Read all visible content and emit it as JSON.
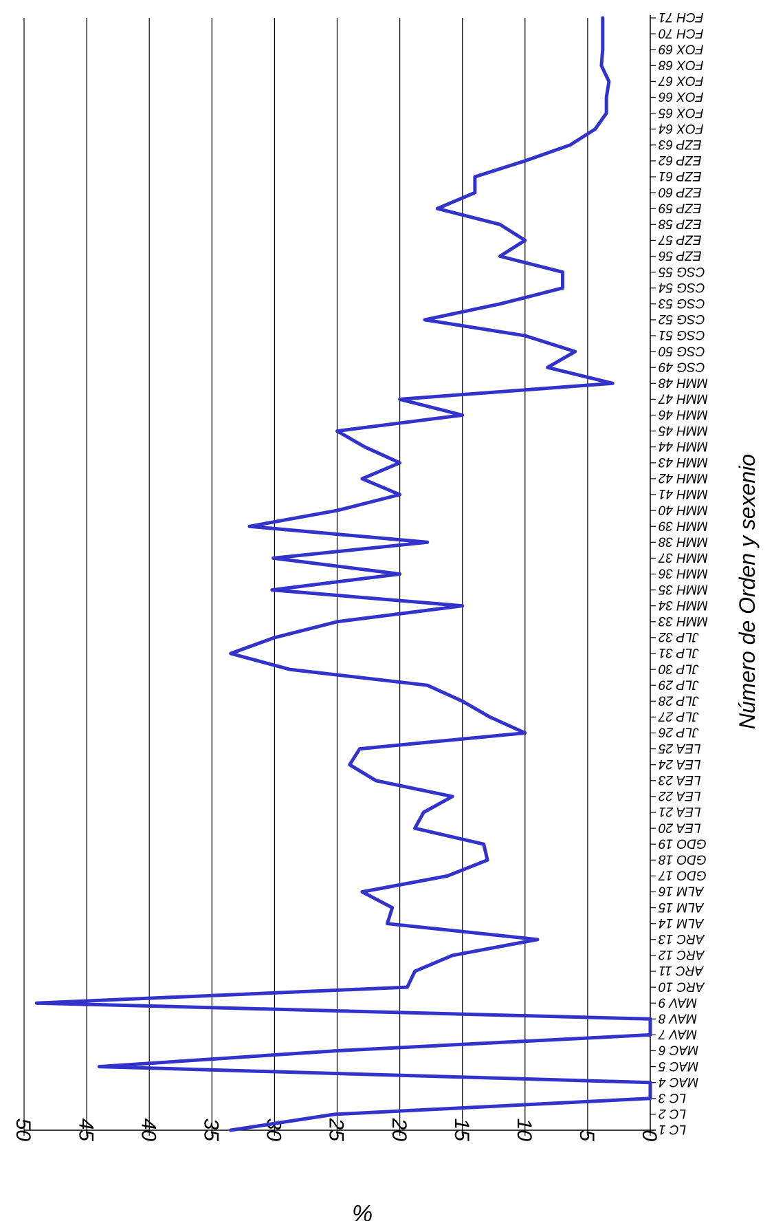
{
  "chart_data": {
    "type": "line",
    "orientation": "rotated-90",
    "xlabel": "Número de Orden y sexenio",
    "ylabel": "%",
    "ylim": [
      0,
      50
    ],
    "yticks": [
      0,
      5,
      10,
      15,
      20,
      25,
      30,
      35,
      40,
      45,
      50
    ],
    "ytick_labels": [
      "0",
      "5",
      "10",
      "15",
      "20",
      "25",
      "30",
      "35",
      "40",
      "45",
      "50"
    ],
    "grid": true,
    "legend": "none",
    "line_color": "#3333cc",
    "categories": [
      "LC 1",
      "LC 2",
      "LC 3",
      "MAC 4",
      "MAC 5",
      "MAC 6",
      "MAV 7",
      "MAV 8",
      "MAV 9",
      "ARC 10",
      "ARC 11",
      "ARC 12",
      "ARC 13",
      "ALM 14",
      "ALM 15",
      "ALM 16",
      "GDO 17",
      "GDO 18",
      "GDO 19",
      "LEA 20",
      "LEA 21",
      "LEA 22",
      "LEA 23",
      "LEA 24",
      "LEA 25",
      "JLP 26",
      "JLP 27",
      "JLP 28",
      "JLP 29",
      "JLP 30",
      "JLP 31",
      "JLP 32",
      "MMH 33",
      "MMH 34",
      "MMH 35",
      "MMH 36",
      "MMH 37",
      "MMH 38",
      "MMH 39",
      "MMH 40",
      "MMH 41",
      "MMH 42",
      "MMH 43",
      "MMH 44",
      "MMH 45",
      "MMH 46",
      "MMH 47",
      "MMH 48",
      "CSG 49",
      "CSG 50",
      "CSG 51",
      "CSG 52",
      "CSG 53",
      "CSG 54",
      "CSG 55",
      "EZP 56",
      "EZP 57",
      "EZP 58",
      "EZP 59",
      "EZP 60",
      "EZP 61",
      "EZP 62",
      "EZP 63",
      "FOX 64",
      "FOX 65",
      "FOX 66",
      "FOX 67",
      "FOX 68",
      "FOX 69",
      "FCH 70",
      "FCH 71"
    ],
    "values": [
      33.5,
      25.2,
      0,
      0,
      44,
      25,
      0,
      0,
      49,
      19.4,
      18.8,
      15.8,
      9,
      21,
      20.6,
      23,
      16.2,
      13,
      13.3,
      18.8,
      18.1,
      15.8,
      21.9,
      24,
      23.2,
      10,
      12.8,
      15,
      17.8,
      28.8,
      33.5,
      30,
      25,
      15,
      30.2,
      20,
      30.1,
      17.8,
      32,
      25,
      20,
      23,
      20,
      22.8,
      25,
      15,
      20,
      3,
      8.2,
      6,
      10,
      18,
      12,
      7,
      7,
      12,
      10,
      12,
      17,
      14,
      14,
      10,
      6.4,
      4.4,
      3.5,
      3.5,
      3.3,
      3.9,
      3.8,
      3.8,
      3.8
    ]
  }
}
